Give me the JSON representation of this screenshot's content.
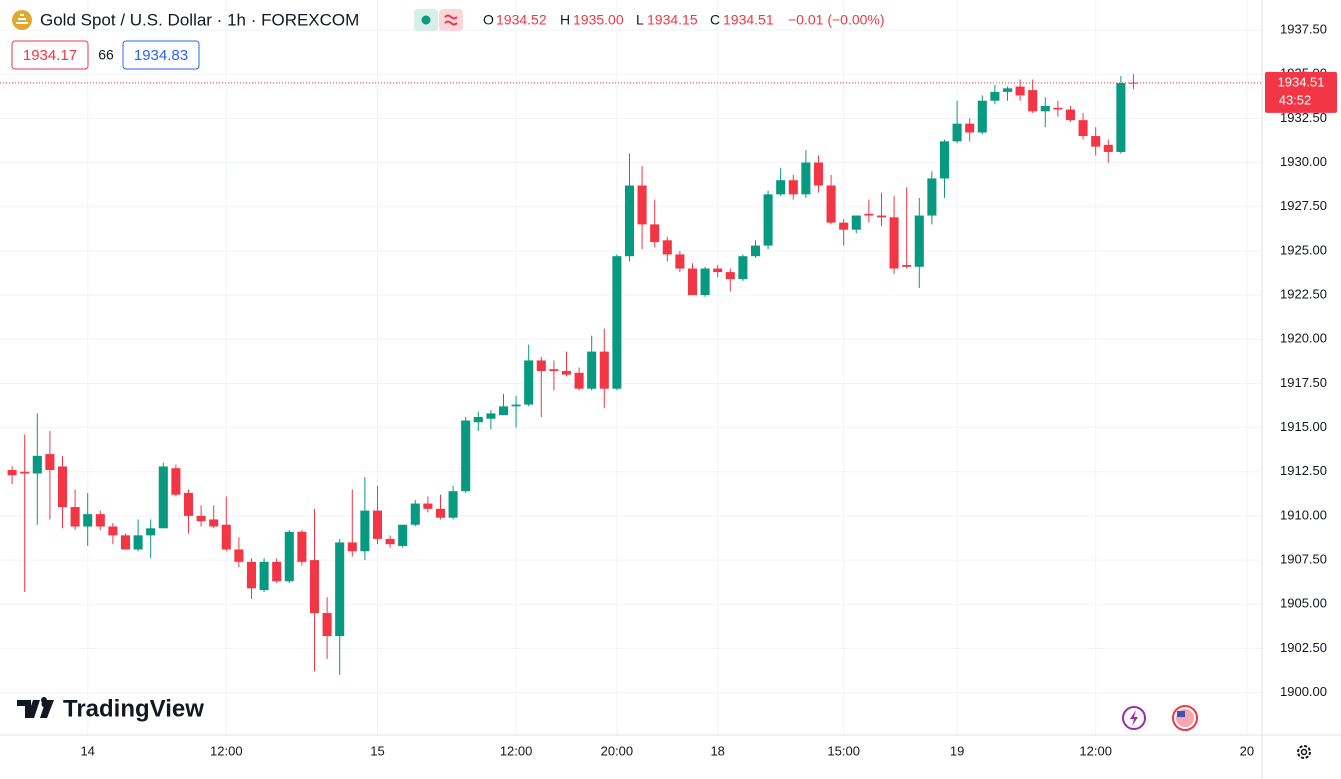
{
  "chart_data": {
    "type": "candlestick",
    "title": "Gold Spot / U.S. Dollar · 1h · FOREXCOM",
    "header": {
      "ohlc": [
        {
          "label": "O",
          "value": "1934.52"
        },
        {
          "label": "H",
          "value": "1935.00"
        },
        {
          "label": "L",
          "value": "1934.15"
        },
        {
          "label": "C",
          "value": "1934.51"
        }
      ],
      "change": "−0.01 (−0.00%)",
      "bid": "1934.17",
      "spread": "66",
      "ask": "1934.83"
    },
    "countdown": "43:52",
    "logo": "TradingView",
    "up_color": "#089981",
    "down_color": "#f23645",
    "grid": true,
    "open": [
      1912.6,
      1912.5,
      1912.4,
      1913.5,
      1912.8,
      1910.5,
      1909.4,
      1910.1,
      1909.4,
      1908.9,
      1908.1,
      1908.9,
      1909.3,
      1912.7,
      1911.3,
      1910.0,
      1909.8,
      1909.5,
      1908.1,
      1907.4,
      1905.8,
      1907.4,
      1906.3,
      1909.1,
      1907.5,
      1904.5,
      1903.2,
      1908.5,
      1908.0,
      1910.3,
      1908.7,
      1908.3,
      1909.5,
      1910.7,
      1910.4,
      1909.9,
      1911.4,
      1915.3,
      1915.5,
      1915.7,
      1916.2,
      1916.3,
      1918.8,
      1918.3,
      1918.2,
      1918.1,
      1917.2,
      1919.3,
      1917.2,
      1924.7,
      1928.7,
      1926.5,
      1925.6,
      1924.8,
      1924.0,
      1922.5,
      1924.0,
      1923.8,
      1923.4,
      1924.7,
      1925.3,
      1928.2,
      1929.0,
      1928.2,
      1930.0,
      1928.7,
      1926.6,
      1926.2,
      1927.1,
      1927.0,
      1926.9,
      1924.2,
      1924.1,
      1927.0,
      1929.1,
      1931.2,
      1932.2,
      1931.7,
      1933.5,
      1934.0,
      1934.3,
      1934.1,
      1932.9,
      1933.1,
      1933.0,
      1932.4,
      1931.5,
      1931.0,
      1930.6,
      1934.52
    ],
    "high": [
      1912.8,
      1914.6,
      1915.8,
      1914.8,
      1913.4,
      1911.5,
      1911.3,
      1910.3,
      1909.6,
      1909.0,
      1909.8,
      1909.8,
      1913.0,
      1912.9,
      1911.5,
      1910.6,
      1910.6,
      1911.1,
      1908.8,
      1907.6,
      1907.6,
      1907.6,
      1909.2,
      1909.2,
      1910.4,
      1905.4,
      1908.7,
      1911.5,
      1912.2,
      1911.7,
      1908.9,
      1909.5,
      1910.9,
      1911.1,
      1911.2,
      1911.7,
      1915.6,
      1915.9,
      1916.0,
      1916.9,
      1916.8,
      1919.7,
      1919.0,
      1918.8,
      1919.3,
      1918.4,
      1920.2,
      1920.6,
      1924.8,
      1930.5,
      1929.8,
      1927.9,
      1925.8,
      1925.0,
      1924.3,
      1924.1,
      1924.2,
      1924.0,
      1924.8,
      1925.6,
      1928.4,
      1929.7,
      1929.3,
      1930.7,
      1930.4,
      1929.3,
      1926.8,
      1927.0,
      1927.9,
      1928.3,
      1928.1,
      1928.6,
      1928.0,
      1929.5,
      1931.3,
      1933.5,
      1932.5,
      1933.8,
      1934.4,
      1934.3,
      1934.7,
      1934.7,
      1933.7,
      1933.5,
      1933.2,
      1932.8,
      1932.0,
      1931.3,
      1934.9,
      1935.0
    ],
    "low": [
      1911.8,
      1905.7,
      1909.5,
      1909.8,
      1909.3,
      1909.2,
      1908.3,
      1909.2,
      1908.4,
      1908.1,
      1908.0,
      1907.6,
      1909.3,
      1911.1,
      1909.0,
      1909.4,
      1909.3,
      1908.0,
      1907.1,
      1905.3,
      1905.7,
      1906.2,
      1906.2,
      1907.2,
      1901.2,
      1901.9,
      1901.0,
      1907.7,
      1907.5,
      1908.4,
      1908.2,
      1908.2,
      1909.4,
      1910.2,
      1909.8,
      1909.8,
      1911.3,
      1914.8,
      1914.9,
      1915.7,
      1915.0,
      1916.2,
      1915.6,
      1917.1,
      1917.9,
      1917.1,
      1917.1,
      1916.1,
      1917.1,
      1924.4,
      1925.1,
      1925.2,
      1924.4,
      1923.8,
      1922.5,
      1922.4,
      1923.5,
      1922.7,
      1923.3,
      1924.6,
      1925.1,
      1928.1,
      1927.9,
      1928.0,
      1928.3,
      1926.5,
      1925.3,
      1926.0,
      1926.6,
      1926.4,
      1923.7,
      1924.0,
      1922.9,
      1926.5,
      1928.0,
      1931.1,
      1931.2,
      1931.6,
      1933.3,
      1933.5,
      1933.5,
      1932.8,
      1932.0,
      1932.6,
      1932.3,
      1931.3,
      1930.4,
      1930.0,
      1930.5,
      1934.15
    ],
    "close": [
      1912.3,
      1912.4,
      1913.4,
      1912.6,
      1910.5,
      1909.4,
      1910.1,
      1909.4,
      1908.9,
      1908.1,
      1908.9,
      1909.3,
      1912.8,
      1911.2,
      1910.0,
      1909.7,
      1909.4,
      1908.1,
      1907.4,
      1905.9,
      1907.4,
      1906.3,
      1909.1,
      1907.4,
      1904.5,
      1903.2,
      1908.5,
      1908.0,
      1910.3,
      1908.7,
      1908.4,
      1909.5,
      1910.7,
      1910.4,
      1909.9,
      1911.4,
      1915.4,
      1915.6,
      1915.8,
      1916.2,
      1916.3,
      1918.8,
      1918.2,
      1918.2,
      1918.0,
      1917.2,
      1919.3,
      1917.2,
      1924.7,
      1928.7,
      1926.5,
      1925.5,
      1924.8,
      1924.0,
      1922.5,
      1924.0,
      1923.8,
      1923.4,
      1924.7,
      1925.3,
      1928.2,
      1929.0,
      1928.2,
      1930.0,
      1928.7,
      1926.6,
      1926.2,
      1927.0,
      1927.0,
      1926.9,
      1924.0,
      1924.1,
      1927.0,
      1929.1,
      1931.2,
      1932.2,
      1931.7,
      1933.5,
      1934.0,
      1934.2,
      1933.8,
      1932.9,
      1933.2,
      1933.0,
      1932.4,
      1931.5,
      1930.9,
      1930.6,
      1934.5,
      1934.51
    ],
    "xlim": [
      -0.96,
      99.2
    ],
    "xticks": [
      {
        "value": 6,
        "label": "14"
      },
      {
        "value": 17,
        "label": "12:00"
      },
      {
        "value": 29,
        "label": "15"
      },
      {
        "value": 40,
        "label": "12:00"
      },
      {
        "value": 48,
        "label": "20:00"
      },
      {
        "value": 56,
        "label": "18"
      },
      {
        "value": 66,
        "label": "15:00"
      },
      {
        "value": 75,
        "label": "19"
      },
      {
        "value": 86,
        "label": "12:00"
      },
      {
        "value": 98,
        "label": "20"
      }
    ],
    "ylim": [
      1897.6,
      1939.2
    ],
    "yticks": [
      {
        "value": 1900,
        "label": "1900.00"
      },
      {
        "value": 1902.5,
        "label": "1902.50"
      },
      {
        "value": 1905,
        "label": "1905.00"
      },
      {
        "value": 1907.5,
        "label": "1907.50"
      },
      {
        "value": 1910,
        "label": "1910.00"
      },
      {
        "value": 1912.5,
        "label": "1912.50"
      },
      {
        "value": 1915,
        "label": "1915.00"
      },
      {
        "value": 1917.5,
        "label": "1917.50"
      },
      {
        "value": 1920,
        "label": "1920.00"
      },
      {
        "value": 1922.5,
        "label": "1922.50"
      },
      {
        "value": 1925,
        "label": "1925.00"
      },
      {
        "value": 1927.5,
        "label": "1927.50"
      },
      {
        "value": 1930,
        "label": "1930.00"
      },
      {
        "value": 1932.5,
        "label": "1932.50"
      },
      {
        "value": 1935,
        "label": "1935.00"
      },
      {
        "value": 1937.5,
        "label": "1937.50"
      }
    ]
  }
}
